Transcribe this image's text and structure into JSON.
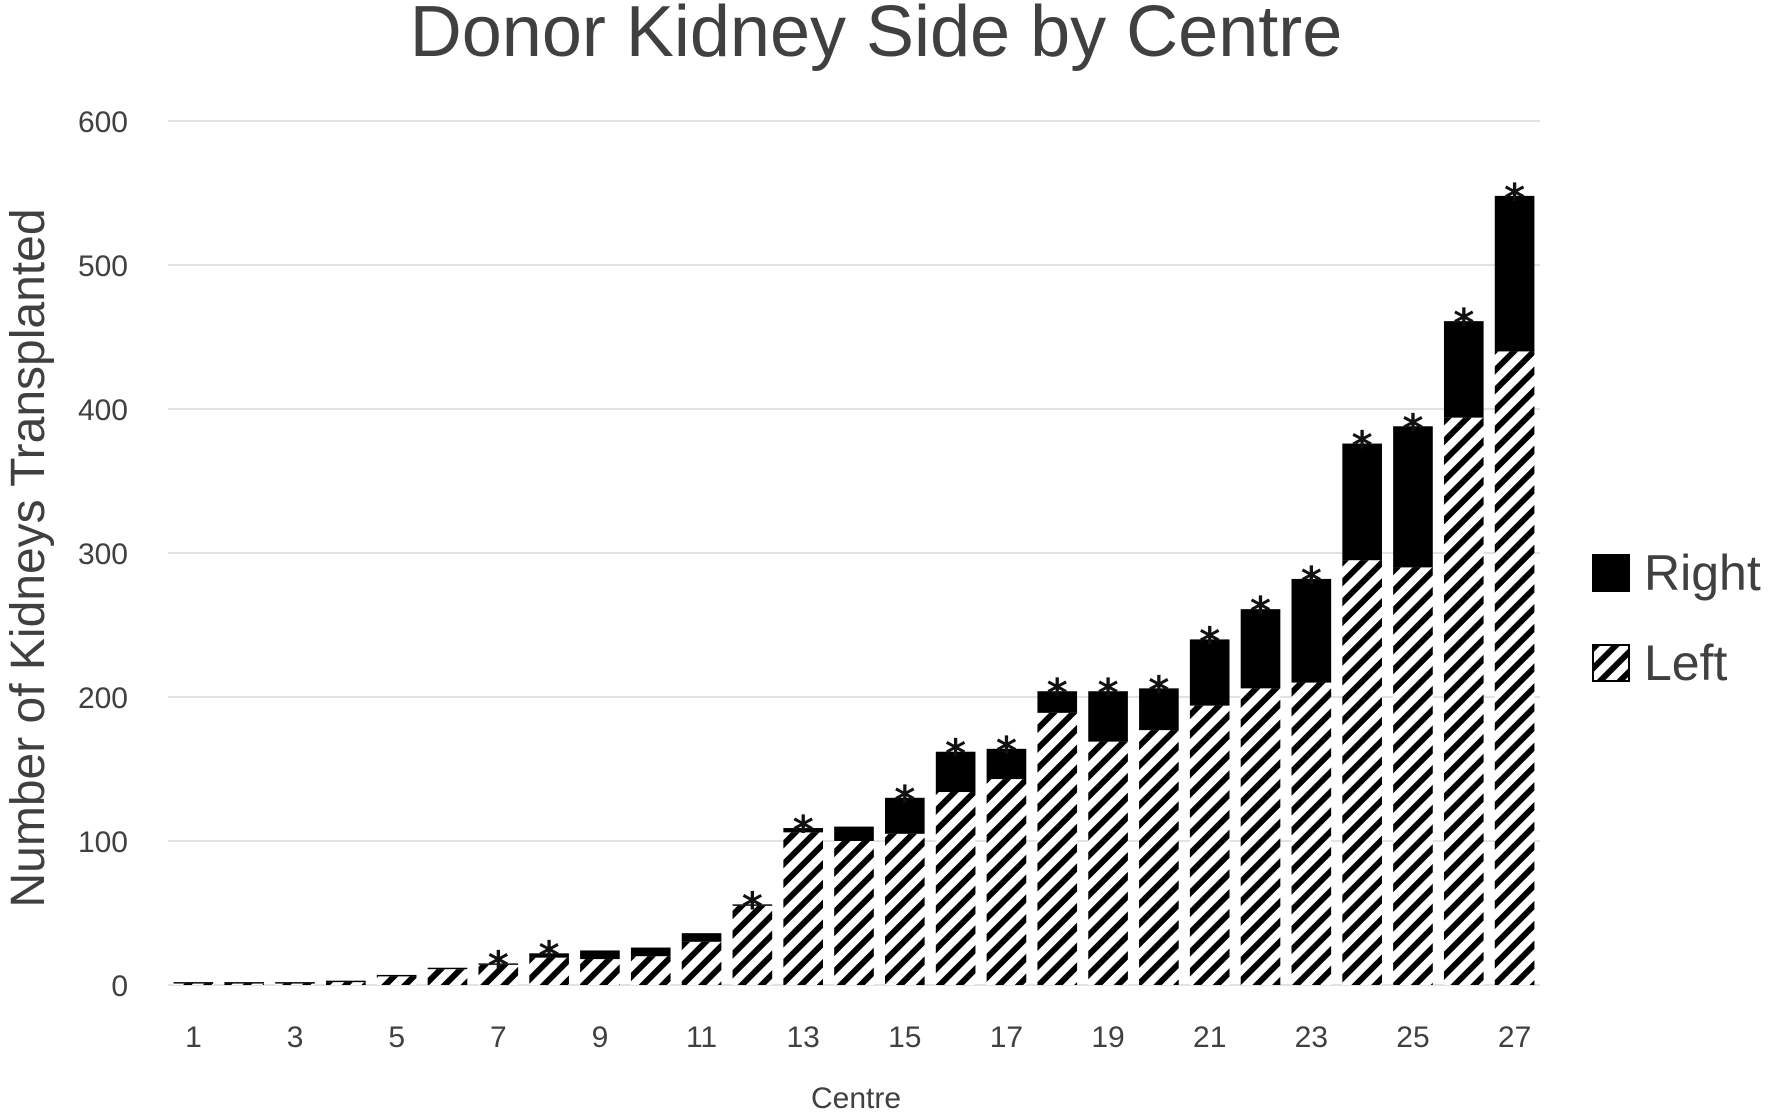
{
  "chart_data": {
    "type": "bar",
    "stacked": true,
    "title": "Donor Kidney Side by Centre",
    "xlabel": "Centre",
    "ylabel": "Number of Kidneys Transplanted",
    "ylim": [
      0,
      600
    ],
    "yticks": [
      0,
      100,
      200,
      300,
      400,
      500,
      600
    ],
    "xtick_labels": [
      "1",
      "3",
      "5",
      "7",
      "9",
      "11",
      "13",
      "15",
      "17",
      "19",
      "21",
      "23",
      "25",
      "27"
    ],
    "grid": true,
    "legend_position": "right",
    "categories": [
      "1",
      "2",
      "3",
      "4",
      "5",
      "6",
      "7",
      "8",
      "9",
      "10",
      "11",
      "12",
      "13",
      "14",
      "15",
      "16",
      "17",
      "18",
      "19",
      "20",
      "21",
      "22",
      "23",
      "24",
      "25",
      "26",
      "27"
    ],
    "series": [
      {
        "name": "Left",
        "pattern": "diagonal-hatch",
        "color": "#000000",
        "values": [
          1,
          1,
          1,
          2,
          6,
          11,
          14,
          19,
          18,
          20,
          30,
          55,
          106,
          100,
          105,
          134,
          143,
          189,
          169,
          177,
          194,
          206,
          210,
          295,
          290,
          394,
          440
        ]
      },
      {
        "name": "Right",
        "pattern": "solid",
        "color": "#000000",
        "values": [
          1,
          1,
          1,
          1,
          1,
          1,
          1,
          3,
          6,
          6,
          6,
          1,
          3,
          10,
          25,
          28,
          21,
          15,
          35,
          29,
          46,
          55,
          72,
          81,
          98,
          67,
          108
        ]
      }
    ],
    "significance_marker": "*",
    "significant_centres": [
      "7",
      "8",
      "12",
      "13",
      "15",
      "16",
      "17",
      "18",
      "19",
      "20",
      "21",
      "22",
      "23",
      "24",
      "25",
      "26",
      "27"
    ]
  }
}
